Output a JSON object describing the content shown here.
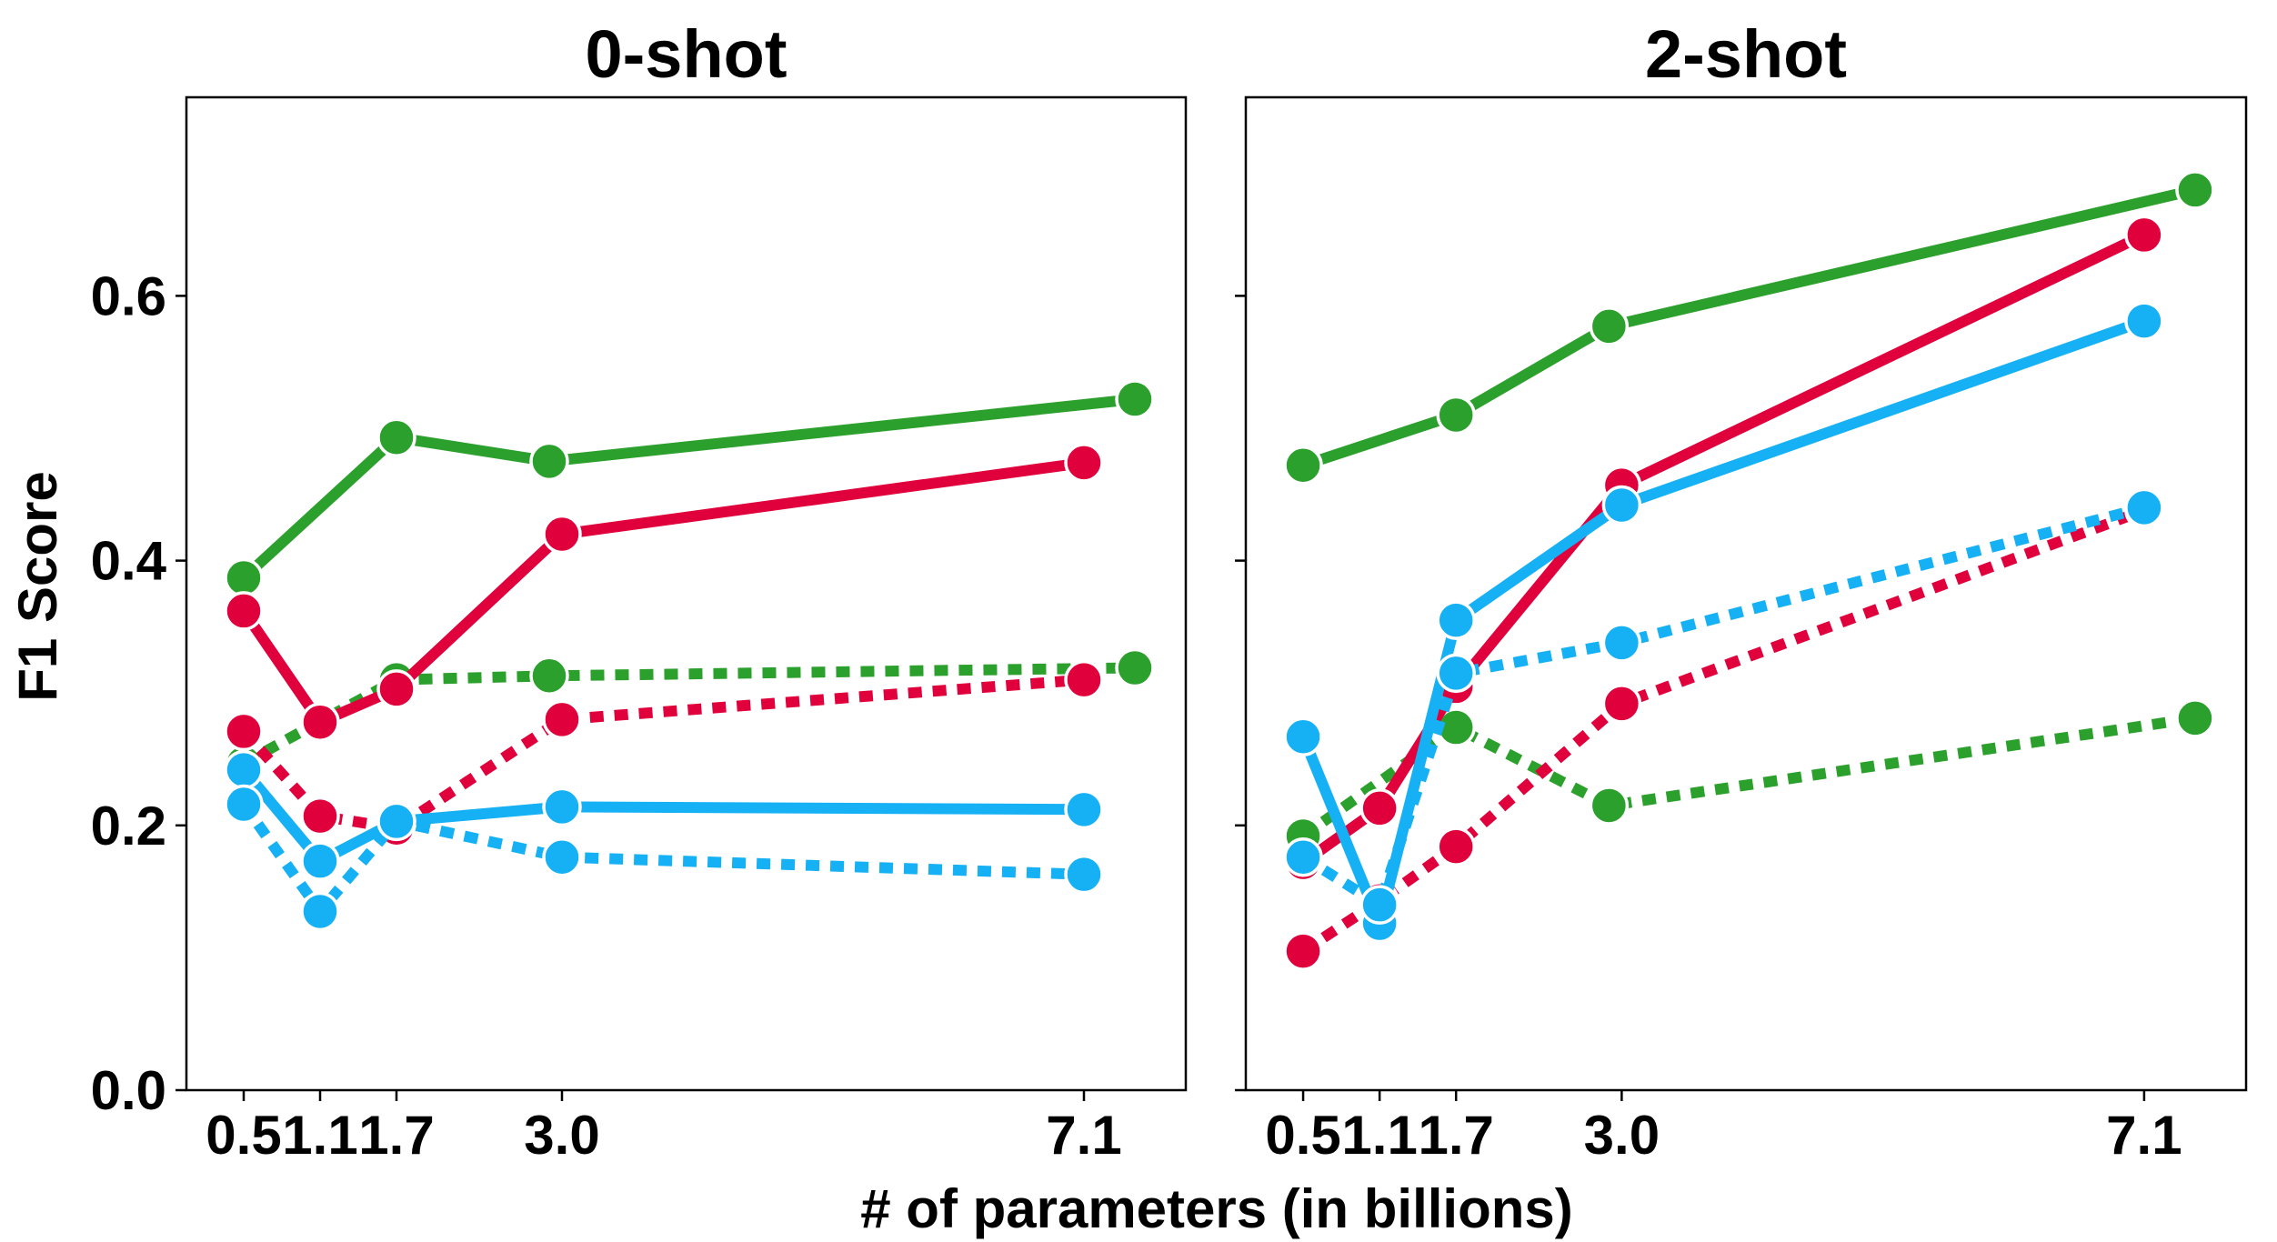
{
  "figure": {
    "xlabel": "# of parameters (in billions)",
    "ylabel": "F1 Score"
  },
  "colors": {
    "green": "#2ca02c",
    "red": "#e0003c",
    "blue": "#16b0f5"
  },
  "chart_data": [
    {
      "type": "line",
      "title": "0-shot",
      "xlim": [
        0.05,
        7.9
      ],
      "ylim": [
        0.0,
        0.75
      ],
      "x_ticks": [
        0.5,
        1.1,
        1.7,
        3.0,
        7.1
      ],
      "x_tick_labels": [
        "0.5",
        "1.1",
        "1.7",
        "3.0",
        "7.1"
      ],
      "y_ticks": [
        0.0,
        0.2,
        0.4,
        0.6
      ],
      "y_tick_labels": [
        "0.0",
        "0.2",
        "0.4",
        "0.6"
      ],
      "series": [
        {
          "color": "green",
          "style": "solid",
          "points": [
            [
              0.5,
              0.387
            ],
            [
              1.7,
              0.493
            ],
            [
              2.9,
              0.475
            ],
            [
              7.5,
              0.522
            ]
          ]
        },
        {
          "color": "green",
          "style": "dotted",
          "points": [
            [
              0.5,
              0.247
            ],
            [
              1.7,
              0.31
            ],
            [
              2.9,
              0.313
            ],
            [
              7.5,
              0.319
            ]
          ]
        },
        {
          "color": "red",
          "style": "solid",
          "points": [
            [
              0.5,
              0.362
            ],
            [
              1.1,
              0.278
            ],
            [
              1.7,
              0.303
            ],
            [
              3.0,
              0.42
            ],
            [
              7.1,
              0.474
            ]
          ]
        },
        {
          "color": "red",
          "style": "dotted",
          "points": [
            [
              0.5,
              0.271
            ],
            [
              1.1,
              0.207
            ],
            [
              1.7,
              0.198
            ],
            [
              3.0,
              0.28
            ],
            [
              7.1,
              0.31
            ]
          ]
        },
        {
          "color": "blue",
          "style": "solid",
          "points": [
            [
              0.5,
              0.242
            ],
            [
              1.1,
              0.173
            ],
            [
              1.7,
              0.203
            ],
            [
              3.0,
              0.214
            ],
            [
              7.1,
              0.212
            ]
          ]
        },
        {
          "color": "blue",
          "style": "dotted",
          "points": [
            [
              0.5,
              0.216
            ],
            [
              1.1,
              0.135
            ],
            [
              1.7,
              0.203
            ],
            [
              3.0,
              0.176
            ],
            [
              7.1,
              0.163
            ]
          ]
        }
      ]
    },
    {
      "type": "line",
      "title": "2-shot",
      "xlim": [
        0.05,
        7.9
      ],
      "ylim": [
        0.0,
        0.75
      ],
      "x_ticks": [
        0.5,
        1.1,
        1.7,
        3.0,
        7.1
      ],
      "x_tick_labels": [
        "0.5",
        "1.1",
        "1.7",
        "3.0",
        "7.1"
      ],
      "y_ticks": [
        0.0,
        0.2,
        0.4,
        0.6
      ],
      "y_tick_labels": [
        "",
        "",
        "",
        ""
      ],
      "series": [
        {
          "color": "green",
          "style": "solid",
          "points": [
            [
              0.5,
              0.472
            ],
            [
              1.7,
              0.51
            ],
            [
              2.9,
              0.577
            ],
            [
              7.5,
              0.68
            ]
          ]
        },
        {
          "color": "green",
          "style": "dotted",
          "points": [
            [
              0.5,
              0.192
            ],
            [
              1.7,
              0.274
            ],
            [
              2.9,
              0.215
            ],
            [
              7.5,
              0.281
            ]
          ]
        },
        {
          "color": "red",
          "style": "solid",
          "points": [
            [
              0.5,
              0.172
            ],
            [
              1.1,
              0.213
            ],
            [
              1.7,
              0.305
            ],
            [
              3.0,
              0.457
            ],
            [
              7.1,
              0.646
            ]
          ]
        },
        {
          "color": "red",
          "style": "dotted",
          "points": [
            [
              0.5,
              0.105
            ],
            [
              1.1,
              0.143
            ],
            [
              1.7,
              0.184
            ],
            [
              3.0,
              0.292
            ],
            [
              7.1,
              0.438
            ]
          ]
        },
        {
          "color": "blue",
          "style": "solid",
          "points": [
            [
              0.5,
              0.267
            ],
            [
              1.1,
              0.126
            ],
            [
              1.7,
              0.355
            ],
            [
              3.0,
              0.442
            ],
            [
              7.1,
              0.581
            ]
          ]
        },
        {
          "color": "blue",
          "style": "dotted",
          "points": [
            [
              0.5,
              0.176
            ],
            [
              1.1,
              0.14
            ],
            [
              1.7,
              0.315
            ],
            [
              3.0,
              0.338
            ],
            [
              7.1,
              0.44
            ]
          ]
        }
      ]
    }
  ]
}
